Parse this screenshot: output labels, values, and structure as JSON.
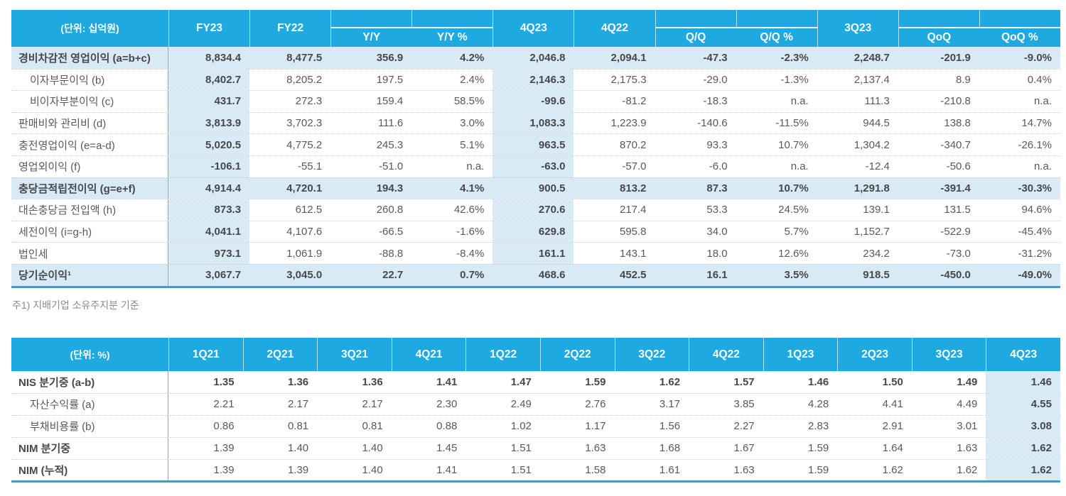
{
  "colors": {
    "accent_cyan": "#1FA9E1",
    "highlight_blue": "#D9EAF7",
    "dotted_separator": "#c8cbcf",
    "label_divider": "#a0a5aa"
  },
  "table1": {
    "unit_label": "(단위: 십억원)",
    "headers": {
      "fy23": "FY23",
      "fy22": "FY22",
      "yy": "Y/Y",
      "yy_pct": "Y/Y %",
      "q4_23": "4Q23",
      "q4_22": "4Q22",
      "qq": "Q/Q",
      "qq_pct": "Q/Q %",
      "q3_23": "3Q23",
      "qoq": "QoQ",
      "qoq_pct": "QoQ %"
    },
    "highlight_columns": [
      0,
      4
    ],
    "rows": [
      {
        "label": "경비차감전 영업이익 (a=b+c)",
        "highlight": true,
        "indent": false,
        "values": [
          "8,834.4",
          "8,477.5",
          "356.9",
          "4.2%",
          "2,046.8",
          "2,094.1",
          "-47.3",
          "-2.3%",
          "2,248.7",
          "-201.9",
          "-9.0%"
        ]
      },
      {
        "label": "이자부문이익 (b)",
        "highlight": false,
        "indent": true,
        "values": [
          "8,402.7",
          "8,205.2",
          "197.5",
          "2.4%",
          "2,146.3",
          "2,175.3",
          "-29.0",
          "-1.3%",
          "2,137.4",
          "8.9",
          "0.4%"
        ]
      },
      {
        "label": "비이자부분이익 (c)",
        "highlight": false,
        "indent": true,
        "values": [
          "431.7",
          "272.3",
          "159.4",
          "58.5%",
          "-99.6",
          "-81.2",
          "-18.3",
          "n.a.",
          "111.3",
          "-210.8",
          "n.a."
        ]
      },
      {
        "label": "판매비와 관리비 (d)",
        "highlight": false,
        "indent": false,
        "values": [
          "3,813.9",
          "3,702.3",
          "111.6",
          "3.0%",
          "1,083.3",
          "1,223.9",
          "-140.6",
          "-11.5%",
          "944.5",
          "138.8",
          "14.7%"
        ]
      },
      {
        "label": "충전영업이익 (e=a-d)",
        "highlight": false,
        "indent": false,
        "values": [
          "5,020.5",
          "4,775.2",
          "245.3",
          "5.1%",
          "963.5",
          "870.2",
          "93.3",
          "10.7%",
          "1,304.2",
          "-340.7",
          "-26.1%"
        ]
      },
      {
        "label": "영업외이익 (f)",
        "highlight": false,
        "indent": false,
        "values": [
          "-106.1",
          "-55.1",
          "-51.0",
          "n.a.",
          "-63.0",
          "-57.0",
          "-6.0",
          "n.a.",
          "-12.4",
          "-50.6",
          "n.a."
        ]
      },
      {
        "label": "충당금적립전이익 (g=e+f)",
        "highlight": true,
        "indent": false,
        "values": [
          "4,914.4",
          "4,720.1",
          "194.3",
          "4.1%",
          "900.5",
          "813.2",
          "87.3",
          "10.7%",
          "1,291.8",
          "-391.4",
          "-30.3%"
        ]
      },
      {
        "label": "대손충당금 전입액 (h)",
        "highlight": false,
        "indent": false,
        "values": [
          "873.3",
          "612.5",
          "260.8",
          "42.6%",
          "270.6",
          "217.4",
          "53.3",
          "24.5%",
          "139.1",
          "131.5",
          "94.6%"
        ]
      },
      {
        "label": "세전이익 (i=g-h)",
        "highlight": false,
        "indent": false,
        "values": [
          "4,041.1",
          "4,107.6",
          "-66.5",
          "-1.6%",
          "629.8",
          "595.8",
          "34.0",
          "5.7%",
          "1,152.7",
          "-522.9",
          "-45.4%"
        ]
      },
      {
        "label": "법인세",
        "highlight": false,
        "indent": false,
        "values": [
          "973.1",
          "1,061.9",
          "-88.8",
          "-8.4%",
          "161.1",
          "143.1",
          "18.0",
          "12.6%",
          "234.2",
          "-73.0",
          "-31.2%"
        ]
      },
      {
        "label": "당기순이익¹",
        "highlight": true,
        "indent": false,
        "values": [
          "3,067.7",
          "3,045.0",
          "22.7",
          "0.7%",
          "468.6",
          "452.5",
          "16.1",
          "3.5%",
          "918.5",
          "-450.0",
          "-49.0%"
        ]
      }
    ],
    "footnote": "주1) 지배기업 소유주지분 기준"
  },
  "table2": {
    "unit_label": "(단위: %)",
    "headers": [
      "1Q21",
      "2Q21",
      "3Q21",
      "4Q21",
      "1Q22",
      "2Q22",
      "3Q22",
      "4Q22",
      "1Q23",
      "2Q23",
      "3Q23",
      "4Q23"
    ],
    "highlight_columns": [
      11
    ],
    "rows": [
      {
        "label": "NIS 분기중 (a-b)",
        "label_bold": true,
        "values_bold": true,
        "indent": false,
        "values": [
          "1.35",
          "1.36",
          "1.36",
          "1.41",
          "1.47",
          "1.59",
          "1.62",
          "1.57",
          "1.46",
          "1.50",
          "1.49",
          "1.46"
        ]
      },
      {
        "label": "자산수익률 (a)",
        "label_bold": false,
        "values_bold": false,
        "indent": true,
        "values": [
          "2.21",
          "2.17",
          "2.17",
          "2.30",
          "2.49",
          "2.76",
          "3.17",
          "3.85",
          "4.28",
          "4.41",
          "4.49",
          "4.55"
        ]
      },
      {
        "label": "부채비용률 (b)",
        "label_bold": false,
        "values_bold": false,
        "indent": true,
        "values": [
          "0.86",
          "0.81",
          "0.81",
          "0.88",
          "1.02",
          "1.17",
          "1.56",
          "2.27",
          "2.83",
          "2.91",
          "3.01",
          "3.08"
        ]
      },
      {
        "label": "NIM 분기중",
        "label_bold": true,
        "values_bold": false,
        "indent": false,
        "values": [
          "1.39",
          "1.40",
          "1.40",
          "1.45",
          "1.51",
          "1.63",
          "1.68",
          "1.67",
          "1.59",
          "1.64",
          "1.63",
          "1.62"
        ]
      },
      {
        "label": "NIM (누적)",
        "label_bold": true,
        "values_bold": false,
        "indent": false,
        "values": [
          "1.39",
          "1.39",
          "1.40",
          "1.41",
          "1.51",
          "1.58",
          "1.61",
          "1.63",
          "1.59",
          "1.62",
          "1.62",
          "1.62"
        ]
      }
    ]
  }
}
